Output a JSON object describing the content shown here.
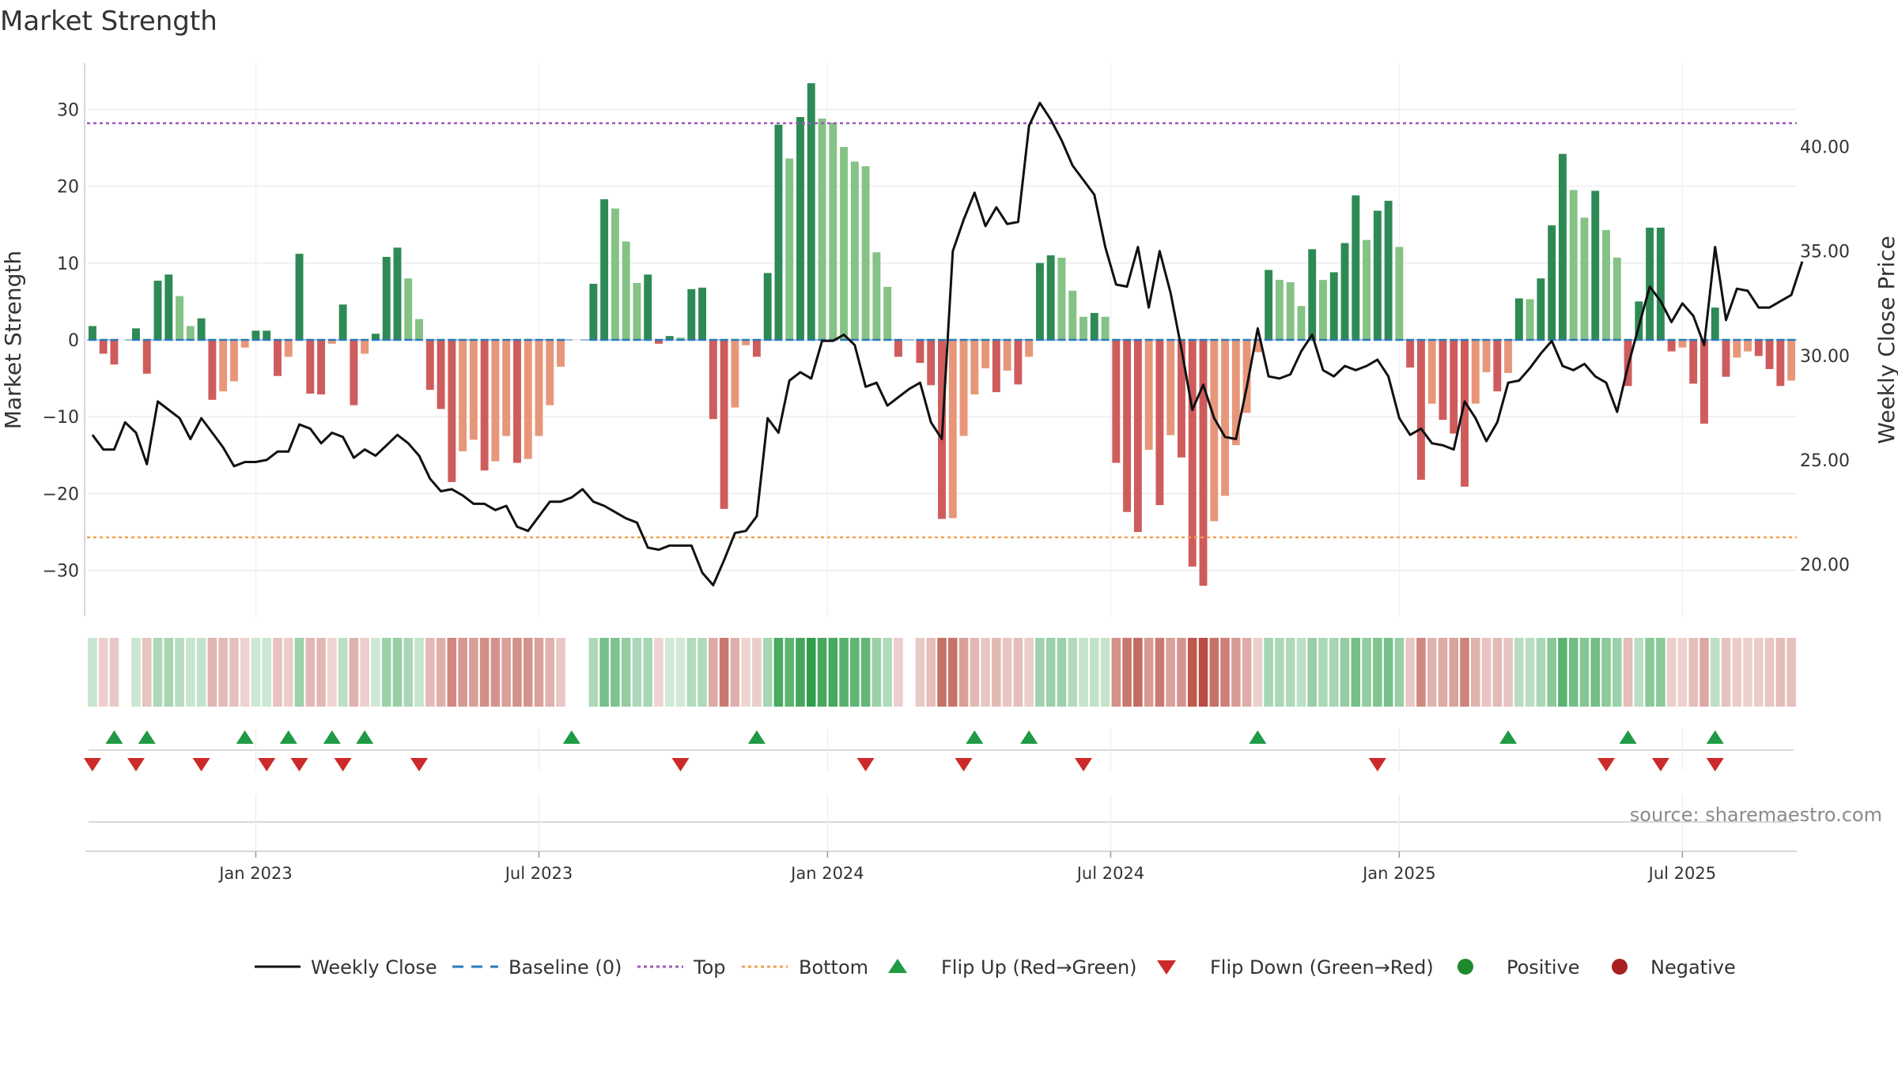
{
  "chart_data": {
    "type": "bar+line",
    "title": "Market Strength",
    "ylabel_left": "Market Strength",
    "ylabel_right": "Weekly Close Price",
    "ylim_left": [
      -36,
      36
    ],
    "ylim_right": [
      17.5,
      44.0
    ],
    "yticks_left": [
      30,
      20,
      10,
      0,
      -10,
      -20,
      -30
    ],
    "yticks_left_labels": [
      "30",
      "20",
      "10",
      "0",
      "−10",
      "−20",
      "−30"
    ],
    "yticks_right": [
      40,
      35,
      30,
      25,
      20
    ],
    "yticks_right_labels": [
      "40.00",
      "35.00",
      "30.00",
      "25.00",
      "20.00"
    ],
    "x_tick_labels": [
      "Jan 2023",
      "Jul 2023",
      "Jan 2024",
      "Jul 2024",
      "Jan 2025",
      "Jul 2025"
    ],
    "x_tick_weeks": [
      15,
      41,
      67.5,
      93.5,
      120,
      146
    ],
    "top_level": 28.2,
    "bottom_level": -25.7,
    "strength": [
      1.8,
      -1.8,
      -3.2,
      0,
      1.5,
      -4.4,
      7.7,
      8.5,
      5.7,
      1.8,
      2.8,
      -7.8,
      -6.7,
      -5.4,
      -1.0,
      1.2,
      1.2,
      -4.7,
      -2.2,
      11.2,
      -7.0,
      -7.1,
      -0.5,
      4.6,
      -8.5,
      -1.8,
      0.8,
      10.8,
      12.0,
      8.0,
      2.7,
      -6.5,
      -9.0,
      -18.5,
      -14.5,
      -13.0,
      -17.0,
      -15.8,
      -12.5,
      -16.0,
      -15.5,
      -12.5,
      -8.5,
      -3.5,
      0,
      0,
      7.3,
      18.3,
      17.1,
      12.8,
      7.4,
      8.5,
      -0.5,
      0.5,
      0.3,
      6.6,
      6.8,
      -10.3,
      -22.0,
      -8.8,
      -0.7,
      -2.2,
      8.7,
      28.0,
      23.6,
      29.0,
      33.4,
      28.8,
      28.3,
      25.1,
      23.2,
      22.6,
      11.4,
      6.9,
      -2.2,
      0,
      -3.0,
      -5.9,
      -23.3,
      -23.2,
      -12.5,
      -7.1,
      -3.7,
      -6.8,
      -4.0,
      -5.8,
      -2.2,
      10.0,
      11.0,
      10.7,
      6.4,
      3.0,
      3.5,
      3.0,
      -16.0,
      -22.4,
      -25.0,
      -14.3,
      -21.5,
      -12.4,
      -15.3,
      -29.5,
      -32.0,
      -23.6,
      -20.3,
      -13.7,
      -9.5,
      -1.6,
      9.1,
      7.8,
      7.5,
      4.4,
      11.8,
      7.8,
      8.8,
      12.6,
      18.8,
      13.0,
      16.8,
      18.1,
      12.1,
      -3.6,
      -18.2,
      -8.3,
      -10.4,
      -12.2,
      -19.1,
      -8.3,
      -4.2,
      -6.7,
      -4.3,
      5.4,
      5.3,
      8.0,
      14.9,
      24.2,
      19.5,
      15.9,
      19.4,
      14.3,
      10.7,
      -6.0,
      5.0,
      14.6,
      14.6,
      -1.5,
      -1.0,
      -5.7,
      -10.9,
      4.2,
      -4.8,
      -2.3,
      -1.5,
      -2.1,
      -3.8,
      -6.0,
      -5.3
    ],
    "weekly_close": [
      26.2,
      25.5,
      25.5,
      26.8,
      26.3,
      24.8,
      27.8,
      27.4,
      27.0,
      26.0,
      27.0,
      26.3,
      25.6,
      24.7,
      24.9,
      24.9,
      25.0,
      25.4,
      25.4,
      26.7,
      26.5,
      25.8,
      26.3,
      26.1,
      25.1,
      25.5,
      25.2,
      25.7,
      26.2,
      25.8,
      25.2,
      24.1,
      23.5,
      23.6,
      23.3,
      22.9,
      22.9,
      22.6,
      22.8,
      21.8,
      21.6,
      22.3,
      23.0,
      23.0,
      23.2,
      23.6,
      23.0,
      22.8,
      22.5,
      22.2,
      22.0,
      20.8,
      20.7,
      20.9,
      20.9,
      20.9,
      19.6,
      19.0,
      20.2,
      21.5,
      21.6,
      22.3,
      27.0,
      26.3,
      28.8,
      29.2,
      28.9,
      30.7,
      30.7,
      31.0,
      30.5,
      28.5,
      28.7,
      27.6,
      28.0,
      28.4,
      28.7,
      26.8,
      26.0,
      35.0,
      36.5,
      37.8,
      36.2,
      37.1,
      36.3,
      36.4,
      41.0,
      42.1,
      41.3,
      40.3,
      39.1,
      38.4,
      37.7,
      35.2,
      33.4,
      33.3,
      35.2,
      32.3,
      35.0,
      33.0,
      30.3,
      27.4,
      28.6,
      27.0,
      26.1,
      26.0,
      28.5,
      31.3,
      29.0,
      28.9,
      29.1,
      30.2,
      31.0,
      29.3,
      29.0,
      29.5,
      29.3,
      29.5,
      29.8,
      29.0,
      27.0,
      26.2,
      26.5,
      25.8,
      25.7,
      25.5,
      27.8,
      27.0,
      25.9,
      26.8,
      28.7,
      28.8,
      29.4,
      30.1,
      30.7,
      29.5,
      29.3,
      29.6,
      29.0,
      28.7,
      27.3,
      29.5,
      31.4,
      33.3,
      32.6,
      31.6,
      32.5,
      31.9,
      30.5,
      35.2,
      31.7,
      33.2,
      33.1,
      32.3,
      32.3,
      32.6,
      32.9,
      34.5
    ],
    "markers_positive_color": "#1f9a45",
    "markers_negative_color": "#cc2a2a",
    "flip_up_weeks": [
      2,
      5,
      14,
      18,
      22,
      25,
      44,
      61,
      81,
      86,
      107,
      130,
      141,
      149
    ],
    "flip_down_weeks": [
      0,
      4,
      10,
      16,
      19,
      23,
      30,
      54,
      71,
      80,
      91,
      118,
      139,
      144,
      149
    ],
    "legend": [
      "Weekly Close",
      "Baseline (0)",
      "Top",
      "Bottom",
      "Flip Up (Red→Green)",
      "Flip Down (Green→Red)",
      "Positive",
      "Negative"
    ],
    "colors": {
      "close": "#111111",
      "baseline": "#2b7bb9",
      "top": "#9b59b6",
      "bottom": "#f0a050",
      "strong_pos": "#2e8a55",
      "weak_pos": "#85c285",
      "strong_neg": "#cf5c5c",
      "weak_neg": "#e8967a",
      "flip_up": "#1f9a45",
      "flip_down": "#cc2a2a"
    }
  },
  "source": "source: sharemaestro.com"
}
